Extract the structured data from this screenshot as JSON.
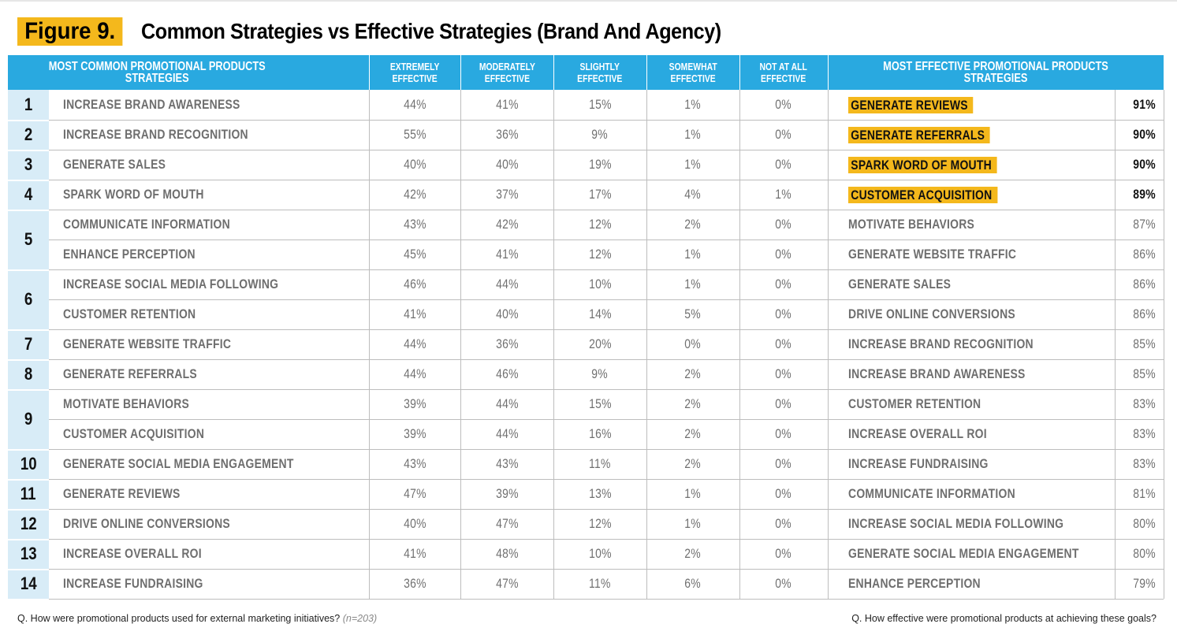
{
  "figure_label": "Figure 9.",
  "title": "Common Strategies vs Effective Strategies (Brand And Agency)",
  "chart_data": {
    "type": "table",
    "title": "Common Strategies vs Effective Strategies (Brand And Agency)",
    "columns": {
      "common": "MOST COMMON PROMOTIONAL PRODUCTS STRATEGIES",
      "ratings": [
        "EXTREMELY\nEFFECTIVE",
        "MODERATELY\nEFFECTIVE",
        "SLIGHTLY\nEFFECTIVE",
        "SOMEWHAT\nEFFECTIVE",
        "NOT AT ALL\nEFFECTIVE"
      ],
      "effective": "MOST EFFECTIVE PROMOTIONAL PRODUCTS STRATEGIES"
    },
    "ranks": [
      {
        "rank": "1",
        "rows": 1
      },
      {
        "rank": "2",
        "rows": 1
      },
      {
        "rank": "3",
        "rows": 1
      },
      {
        "rank": "4",
        "rows": 1
      },
      {
        "rank": "5",
        "rows": 2
      },
      {
        "rank": "6",
        "rows": 2
      },
      {
        "rank": "7",
        "rows": 1
      },
      {
        "rank": "8",
        "rows": 1
      },
      {
        "rank": "9",
        "rows": 2
      },
      {
        "rank": "10",
        "rows": 1
      },
      {
        "rank": "11",
        "rows": 1
      },
      {
        "rank": "12",
        "rows": 1
      },
      {
        "rank": "13",
        "rows": 1
      },
      {
        "rank": "14",
        "rows": 1
      }
    ],
    "rows": [
      {
        "strategy": "INCREASE BRAND AWARENESS",
        "values": [
          "44%",
          "41%",
          "15%",
          "1%",
          "0%"
        ],
        "eff_strategy": "GENERATE REVIEWS",
        "eff_value": "91%",
        "highlight": true
      },
      {
        "strategy": "INCREASE BRAND RECOGNITION",
        "values": [
          "55%",
          "36%",
          "9%",
          "1%",
          "0%"
        ],
        "eff_strategy": "GENERATE REFERRALS",
        "eff_value": "90%",
        "highlight": true
      },
      {
        "strategy": "GENERATE SALES",
        "values": [
          "40%",
          "40%",
          "19%",
          "1%",
          "0%"
        ],
        "eff_strategy": "SPARK WORD OF MOUTH",
        "eff_value": "90%",
        "highlight": true
      },
      {
        "strategy": "SPARK WORD OF MOUTH",
        "values": [
          "42%",
          "37%",
          "17%",
          "4%",
          "1%"
        ],
        "eff_strategy": "CUSTOMER ACQUISITION",
        "eff_value": "89%",
        "highlight": true
      },
      {
        "strategy": "COMMUNICATE INFORMATION",
        "values": [
          "43%",
          "42%",
          "12%",
          "2%",
          "0%"
        ],
        "eff_strategy": "MOTIVATE BEHAVIORS",
        "eff_value": "87%",
        "highlight": false
      },
      {
        "strategy": "ENHANCE PERCEPTION",
        "values": [
          "45%",
          "41%",
          "12%",
          "1%",
          "0%"
        ],
        "eff_strategy": "GENERATE WEBSITE TRAFFIC",
        "eff_value": "86%",
        "highlight": false
      },
      {
        "strategy": "INCREASE SOCIAL MEDIA FOLLOWING",
        "values": [
          "46%",
          "44%",
          "10%",
          "1%",
          "0%"
        ],
        "eff_strategy": "GENERATE SALES",
        "eff_value": "86%",
        "highlight": false
      },
      {
        "strategy": "CUSTOMER RETENTION",
        "values": [
          "41%",
          "40%",
          "14%",
          "5%",
          "0%"
        ],
        "eff_strategy": "DRIVE ONLINE CONVERSIONS",
        "eff_value": "86%",
        "highlight": false
      },
      {
        "strategy": "GENERATE WEBSITE TRAFFIC",
        "values": [
          "44%",
          "36%",
          "20%",
          "0%",
          "0%"
        ],
        "eff_strategy": "INCREASE BRAND RECOGNITION",
        "eff_value": "85%",
        "highlight": false
      },
      {
        "strategy": "GENERATE REFERRALS",
        "values": [
          "44%",
          "46%",
          "9%",
          "2%",
          "0%"
        ],
        "eff_strategy": "INCREASE BRAND AWARENESS",
        "eff_value": "85%",
        "highlight": false
      },
      {
        "strategy": "MOTIVATE BEHAVIORS",
        "values": [
          "39%",
          "44%",
          "15%",
          "2%",
          "0%"
        ],
        "eff_strategy": "CUSTOMER RETENTION",
        "eff_value": "83%",
        "highlight": false
      },
      {
        "strategy": "CUSTOMER ACQUISITION",
        "values": [
          "39%",
          "44%",
          "16%",
          "2%",
          "0%"
        ],
        "eff_strategy": "INCREASE OVERALL ROI",
        "eff_value": "83%",
        "highlight": false
      },
      {
        "strategy": "GENERATE SOCIAL MEDIA ENGAGEMENT",
        "values": [
          "43%",
          "43%",
          "11%",
          "2%",
          "0%"
        ],
        "eff_strategy": "INCREASE FUNDRAISING",
        "eff_value": "83%",
        "highlight": false
      },
      {
        "strategy": "GENERATE REVIEWS",
        "values": [
          "47%",
          "39%",
          "13%",
          "1%",
          "0%"
        ],
        "eff_strategy": "COMMUNICATE INFORMATION",
        "eff_value": "81%",
        "highlight": false
      },
      {
        "strategy": "DRIVE ONLINE CONVERSIONS",
        "values": [
          "40%",
          "47%",
          "12%",
          "1%",
          "0%"
        ],
        "eff_strategy": "INCREASE SOCIAL MEDIA FOLLOWING",
        "eff_value": "80%",
        "highlight": false
      },
      {
        "strategy": "INCREASE OVERALL ROI",
        "values": [
          "41%",
          "48%",
          "10%",
          "2%",
          "0%"
        ],
        "eff_strategy": "GENERATE SOCIAL MEDIA ENGAGEMENT",
        "eff_value": "80%",
        "highlight": false
      },
      {
        "strategy": "INCREASE FUNDRAISING",
        "values": [
          "36%",
          "47%",
          "11%",
          "6%",
          "0%"
        ],
        "eff_strategy": "ENHANCE PERCEPTION",
        "eff_value": "79%",
        "highlight": false
      }
    ]
  },
  "footnote_left": {
    "question": "Q. How were promotional products used for external marketing initiatives?",
    "sample": "(n=203)"
  },
  "footnote_right": "Q. How effective were promotional products at achieving these goals?",
  "colors": {
    "header_bg": "#29a9e0",
    "rank_bg": "#d8ecf7",
    "highlight": "#f4b81c"
  }
}
